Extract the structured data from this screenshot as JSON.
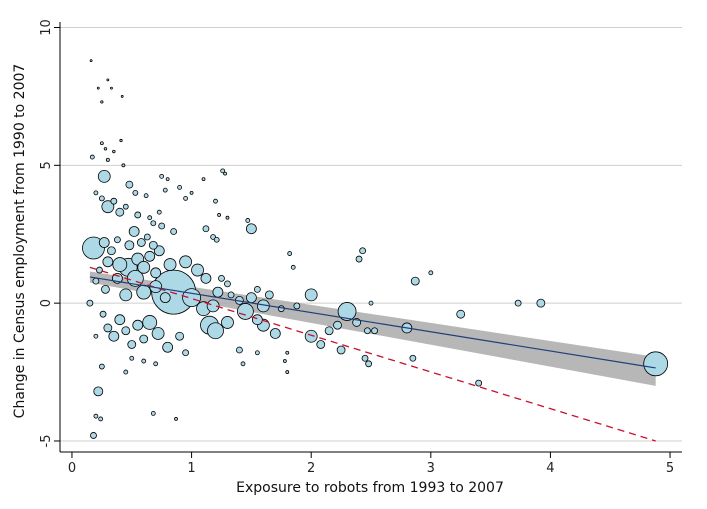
{
  "chart_data": {
    "type": "scatter",
    "title": "",
    "xlabel": "Exposure to robots from 1993 to 2007",
    "ylabel": "Change in Census employment from 1990 to 2007",
    "xlim": [
      -0.1,
      5.1
    ],
    "ylim": [
      -5.4,
      10.2
    ],
    "xticks": [
      0,
      1,
      2,
      3,
      4,
      5
    ],
    "yticks": [
      -5,
      0,
      5,
      10
    ],
    "grid": {
      "y": true,
      "x": false
    },
    "colors": {
      "marker_fill": "#add8e6",
      "marker_edge": "#000000",
      "fit_line": "#1f3f7a",
      "ci_band": "#aaaaaa",
      "dashed_line": "#c8102e",
      "gridline": "#cfcfcf"
    },
    "fit_line": {
      "x": [
        0.15,
        4.88
      ],
      "y": [
        0.95,
        -2.35
      ]
    },
    "confidence_band": {
      "x": [
        0.15,
        4.88
      ],
      "upper": [
        1.15,
        -1.95
      ],
      "lower": [
        0.75,
        -3.0
      ]
    },
    "dashed_line": {
      "x": [
        0.15,
        4.88
      ],
      "y": [
        1.3,
        -5.0
      ]
    },
    "points": [
      {
        "x": 0.16,
        "y": 8.8,
        "s": 1
      },
      {
        "x": 0.22,
        "y": 7.8,
        "s": 1
      },
      {
        "x": 0.25,
        "y": 7.3,
        "s": 1.2
      },
      {
        "x": 0.3,
        "y": 8.1,
        "s": 1
      },
      {
        "x": 0.33,
        "y": 7.8,
        "s": 1
      },
      {
        "x": 0.42,
        "y": 7.5,
        "s": 1
      },
      {
        "x": 0.17,
        "y": 5.3,
        "s": 2
      },
      {
        "x": 0.25,
        "y": 5.8,
        "s": 1.5
      },
      {
        "x": 0.28,
        "y": 5.6,
        "s": 1.3
      },
      {
        "x": 0.3,
        "y": 5.2,
        "s": 1.6
      },
      {
        "x": 0.35,
        "y": 5.5,
        "s": 1.3
      },
      {
        "x": 0.41,
        "y": 5.9,
        "s": 1.2
      },
      {
        "x": 0.43,
        "y": 5.0,
        "s": 1.5
      },
      {
        "x": 0.27,
        "y": 4.6,
        "s": 6
      },
      {
        "x": 0.2,
        "y": 4.0,
        "s": 2
      },
      {
        "x": 0.48,
        "y": 4.3,
        "s": 3.5
      },
      {
        "x": 0.53,
        "y": 4.0,
        "s": 2.5
      },
      {
        "x": 0.62,
        "y": 3.9,
        "s": 2
      },
      {
        "x": 0.25,
        "y": 3.8,
        "s": 2.5
      },
      {
        "x": 0.35,
        "y": 3.7,
        "s": 3
      },
      {
        "x": 0.45,
        "y": 3.5,
        "s": 2.5
      },
      {
        "x": 0.3,
        "y": 3.5,
        "s": 6
      },
      {
        "x": 0.4,
        "y": 3.3,
        "s": 4
      },
      {
        "x": 0.55,
        "y": 3.2,
        "s": 3
      },
      {
        "x": 0.65,
        "y": 3.1,
        "s": 2
      },
      {
        "x": 0.73,
        "y": 3.3,
        "s": 2
      },
      {
        "x": 0.75,
        "y": 4.6,
        "s": 2
      },
      {
        "x": 0.78,
        "y": 4.1,
        "s": 2
      },
      {
        "x": 0.8,
        "y": 4.5,
        "s": 1.5
      },
      {
        "x": 0.9,
        "y": 4.2,
        "s": 2
      },
      {
        "x": 0.95,
        "y": 3.8,
        "s": 2
      },
      {
        "x": 1.0,
        "y": 4.0,
        "s": 1.5
      },
      {
        "x": 1.1,
        "y": 4.5,
        "s": 1.5
      },
      {
        "x": 1.2,
        "y": 3.7,
        "s": 2
      },
      {
        "x": 1.26,
        "y": 4.8,
        "s": 2
      },
      {
        "x": 1.28,
        "y": 4.7,
        "s": 1.5
      },
      {
        "x": 1.23,
        "y": 3.2,
        "s": 1.5
      },
      {
        "x": 1.3,
        "y": 3.1,
        "s": 1.5
      },
      {
        "x": 1.47,
        "y": 3.0,
        "s": 2
      },
      {
        "x": 1.5,
        "y": 2.7,
        "s": 5
      },
      {
        "x": 1.12,
        "y": 2.7,
        "s": 3
      },
      {
        "x": 1.18,
        "y": 2.4,
        "s": 2.5
      },
      {
        "x": 1.21,
        "y": 2.3,
        "s": 2.5
      },
      {
        "x": 0.68,
        "y": 2.9,
        "s": 2.5
      },
      {
        "x": 0.75,
        "y": 2.8,
        "s": 3
      },
      {
        "x": 0.85,
        "y": 2.6,
        "s": 3
      },
      {
        "x": 0.18,
        "y": 2.0,
        "s": 11
      },
      {
        "x": 0.27,
        "y": 2.2,
        "s": 5
      },
      {
        "x": 0.33,
        "y": 1.9,
        "s": 4
      },
      {
        "x": 0.38,
        "y": 2.3,
        "s": 3
      },
      {
        "x": 0.48,
        "y": 2.1,
        "s": 4.5
      },
      {
        "x": 0.52,
        "y": 2.6,
        "s": 5
      },
      {
        "x": 0.58,
        "y": 2.2,
        "s": 4
      },
      {
        "x": 0.63,
        "y": 2.4,
        "s": 3
      },
      {
        "x": 0.68,
        "y": 2.1,
        "s": 4
      },
      {
        "x": 0.73,
        "y": 1.9,
        "s": 5
      },
      {
        "x": 0.3,
        "y": 1.5,
        "s": 5
      },
      {
        "x": 0.4,
        "y": 1.4,
        "s": 7
      },
      {
        "x": 0.47,
        "y": 1.3,
        "s": 9
      },
      {
        "x": 0.55,
        "y": 1.6,
        "s": 6
      },
      {
        "x": 0.6,
        "y": 1.3,
        "s": 6
      },
      {
        "x": 0.65,
        "y": 1.7,
        "s": 5
      },
      {
        "x": 0.7,
        "y": 1.1,
        "s": 5
      },
      {
        "x": 0.82,
        "y": 1.4,
        "s": 6
      },
      {
        "x": 0.95,
        "y": 1.5,
        "s": 6
      },
      {
        "x": 1.05,
        "y": 1.2,
        "s": 6
      },
      {
        "x": 1.12,
        "y": 0.9,
        "s": 5
      },
      {
        "x": 0.2,
        "y": 0.8,
        "s": 3
      },
      {
        "x": 0.28,
        "y": 0.5,
        "s": 4
      },
      {
        "x": 0.38,
        "y": 0.9,
        "s": 5
      },
      {
        "x": 0.45,
        "y": 0.3,
        "s": 6
      },
      {
        "x": 0.53,
        "y": 0.9,
        "s": 8
      },
      {
        "x": 0.6,
        "y": 0.4,
        "s": 7
      },
      {
        "x": 0.7,
        "y": 0.6,
        "s": 6
      },
      {
        "x": 0.78,
        "y": 0.2,
        "s": 5
      },
      {
        "x": 0.85,
        "y": 0.4,
        "s": 22
      },
      {
        "x": 1.0,
        "y": 0.2,
        "s": 9
      },
      {
        "x": 1.1,
        "y": -0.2,
        "s": 7
      },
      {
        "x": 1.18,
        "y": -0.1,
        "s": 6
      },
      {
        "x": 1.22,
        "y": 0.4,
        "s": 5
      },
      {
        "x": 1.25,
        "y": 0.9,
        "s": 3
      },
      {
        "x": 1.3,
        "y": 0.7,
        "s": 3
      },
      {
        "x": 1.33,
        "y": 0.3,
        "s": 3
      },
      {
        "x": 1.4,
        "y": 0.1,
        "s": 4
      },
      {
        "x": 1.45,
        "y": -0.3,
        "s": 8
      },
      {
        "x": 1.5,
        "y": 0.2,
        "s": 5
      },
      {
        "x": 1.6,
        "y": -0.1,
        "s": 6
      },
      {
        "x": 1.65,
        "y": 0.3,
        "s": 4
      },
      {
        "x": 1.75,
        "y": -0.2,
        "s": 3
      },
      {
        "x": 1.82,
        "y": 1.8,
        "s": 2
      },
      {
        "x": 1.85,
        "y": 1.3,
        "s": 2
      },
      {
        "x": 1.88,
        "y": -0.1,
        "s": 3
      },
      {
        "x": 1.55,
        "y": 0.5,
        "s": 3
      },
      {
        "x": 1.15,
        "y": -0.8,
        "s": 9
      },
      {
        "x": 1.2,
        "y": -1.0,
        "s": 8
      },
      {
        "x": 1.3,
        "y": -0.7,
        "s": 6
      },
      {
        "x": 1.55,
        "y": -0.6,
        "s": 5
      },
      {
        "x": 1.6,
        "y": -0.8,
        "s": 6
      },
      {
        "x": 1.7,
        "y": -1.1,
        "s": 5
      },
      {
        "x": 1.4,
        "y": -1.7,
        "s": 3
      },
      {
        "x": 1.43,
        "y": -2.2,
        "s": 2
      },
      {
        "x": 1.55,
        "y": -1.8,
        "s": 2
      },
      {
        "x": 1.78,
        "y": -2.1,
        "s": 1.5
      },
      {
        "x": 1.8,
        "y": -2.5,
        "s": 1.5
      },
      {
        "x": 1.8,
        "y": -1.8,
        "s": 1.5
      },
      {
        "x": 0.3,
        "y": -0.9,
        "s": 4
      },
      {
        "x": 0.35,
        "y": -1.2,
        "s": 5
      },
      {
        "x": 0.4,
        "y": -0.6,
        "s": 5
      },
      {
        "x": 0.45,
        "y": -1.0,
        "s": 4
      },
      {
        "x": 0.5,
        "y": -1.5,
        "s": 4
      },
      {
        "x": 0.55,
        "y": -0.8,
        "s": 5
      },
      {
        "x": 0.6,
        "y": -1.3,
        "s": 4
      },
      {
        "x": 0.65,
        "y": -0.7,
        "s": 7
      },
      {
        "x": 0.72,
        "y": -1.1,
        "s": 6
      },
      {
        "x": 0.8,
        "y": -1.6,
        "s": 5
      },
      {
        "x": 0.9,
        "y": -1.2,
        "s": 4
      },
      {
        "x": 0.95,
        "y": -1.8,
        "s": 3
      },
      {
        "x": 0.25,
        "y": -2.3,
        "s": 2.5
      },
      {
        "x": 0.22,
        "y": -3.2,
        "s": 4.5
      },
      {
        "x": 0.2,
        "y": -4.1,
        "s": 2
      },
      {
        "x": 0.18,
        "y": -4.8,
        "s": 3
      },
      {
        "x": 0.24,
        "y": -4.2,
        "s": 2
      },
      {
        "x": 0.45,
        "y": -2.5,
        "s": 2
      },
      {
        "x": 0.68,
        "y": -4.0,
        "s": 2
      },
      {
        "x": 0.87,
        "y": -4.2,
        "s": 1.5
      },
      {
        "x": 0.5,
        "y": -2.0,
        "s": 2
      },
      {
        "x": 0.6,
        "y": -2.1,
        "s": 2
      },
      {
        "x": 0.7,
        "y": -2.2,
        "s": 2
      },
      {
        "x": 0.15,
        "y": 0.0,
        "s": 3
      },
      {
        "x": 0.2,
        "y": -1.2,
        "s": 2
      },
      {
        "x": 0.23,
        "y": 1.2,
        "s": 3
      },
      {
        "x": 0.26,
        "y": -0.4,
        "s": 3
      },
      {
        "x": 2.0,
        "y": 0.3,
        "s": 6
      },
      {
        "x": 2.0,
        "y": -1.2,
        "s": 6
      },
      {
        "x": 2.08,
        "y": -1.5,
        "s": 4
      },
      {
        "x": 2.15,
        "y": -1.0,
        "s": 4
      },
      {
        "x": 2.22,
        "y": -0.8,
        "s": 4
      },
      {
        "x": 2.25,
        "y": -1.7,
        "s": 4
      },
      {
        "x": 2.3,
        "y": -0.3,
        "s": 9
      },
      {
        "x": 2.38,
        "y": -0.7,
        "s": 4
      },
      {
        "x": 2.43,
        "y": 1.9,
        "s": 3
      },
      {
        "x": 2.4,
        "y": 1.6,
        "s": 3
      },
      {
        "x": 2.45,
        "y": -2.0,
        "s": 3
      },
      {
        "x": 2.47,
        "y": -1.0,
        "s": 3
      },
      {
        "x": 2.48,
        "y": -2.2,
        "s": 3
      },
      {
        "x": 2.5,
        "y": 0.0,
        "s": 2
      },
      {
        "x": 2.53,
        "y": -1.0,
        "s": 3
      },
      {
        "x": 2.8,
        "y": -0.9,
        "s": 5
      },
      {
        "x": 2.85,
        "y": -2.0,
        "s": 3
      },
      {
        "x": 2.87,
        "y": 0.8,
        "s": 4
      },
      {
        "x": 3.0,
        "y": 1.1,
        "s": 2
      },
      {
        "x": 3.25,
        "y": -0.4,
        "s": 4
      },
      {
        "x": 3.4,
        "y": -2.9,
        "s": 3
      },
      {
        "x": 3.73,
        "y": 0.0,
        "s": 3
      },
      {
        "x": 3.92,
        "y": 0.0,
        "s": 4
      },
      {
        "x": 4.88,
        "y": -2.2,
        "s": 12
      }
    ]
  }
}
